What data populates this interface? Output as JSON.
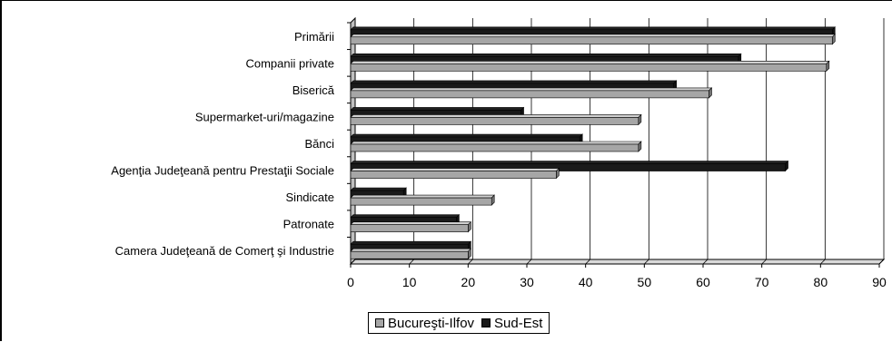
{
  "chart_data": {
    "type": "bar",
    "orientation": "horizontal",
    "categories": [
      "Primării",
      "Companii private",
      "Biserică",
      "Supermarket-uri/magazine",
      "Bănci",
      "Agenţia Judeţeană pentru Prestaţii Sociale",
      "Sindicate",
      "Patronate",
      "Camera Judeţeană de Comerţ şi Industrie"
    ],
    "series": [
      {
        "name": "Bucureşti-Ilfov",
        "color": "#a6a6a6",
        "values": [
          82,
          81,
          61,
          49,
          49,
          35,
          24,
          20,
          20
        ]
      },
      {
        "name": "Sud-Est",
        "color": "#1a1a1a",
        "values": [
          82,
          66,
          55,
          29,
          39,
          74,
          9,
          18,
          20
        ]
      }
    ],
    "xlim": [
      0,
      90
    ],
    "xticks": [
      "0",
      "10",
      "20",
      "30",
      "40",
      "50",
      "60",
      "70",
      "80",
      "90"
    ],
    "grid": true,
    "legend_position": "bottom"
  }
}
